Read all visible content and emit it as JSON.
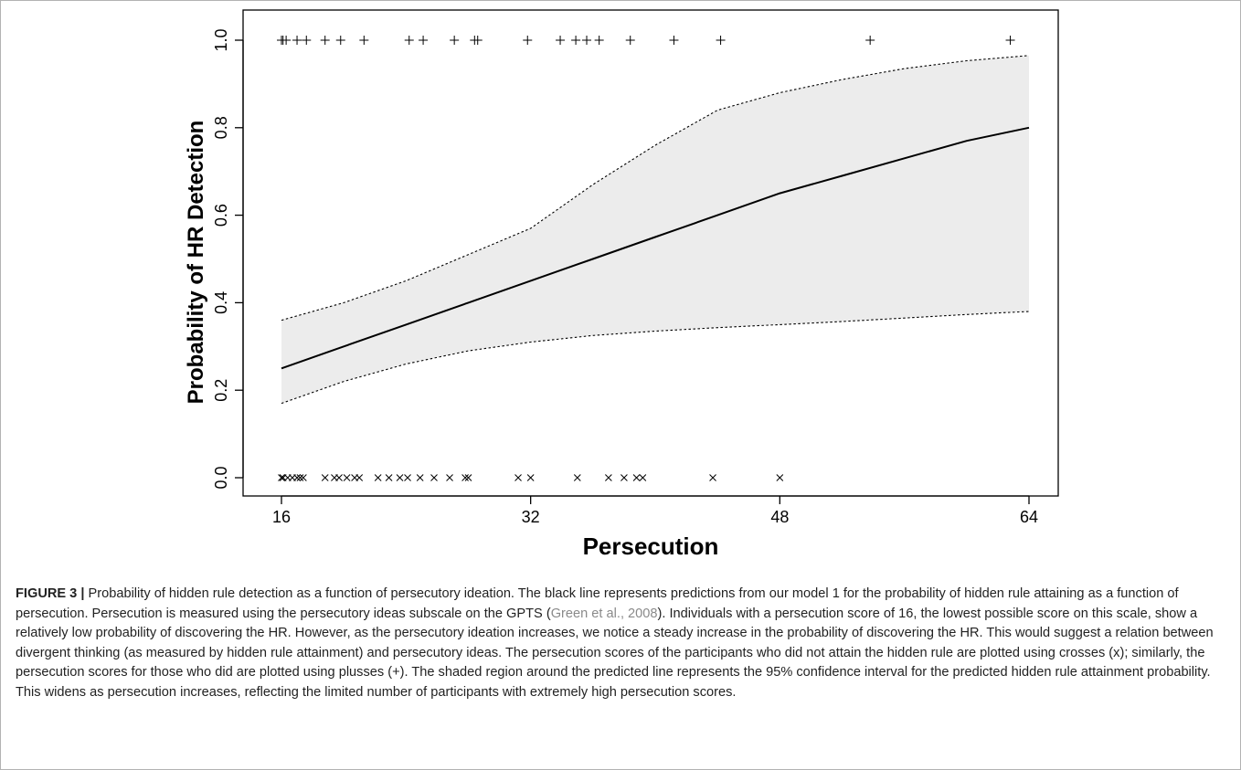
{
  "chart_data": {
    "type": "line",
    "xlabel": "Persecution",
    "ylabel": "Probability of HR Detection",
    "xlim": [
      16,
      64
    ],
    "ylim": [
      0,
      1
    ],
    "x_ticks": [
      16,
      32,
      48,
      64
    ],
    "y_ticks": [
      0.0,
      0.2,
      0.4,
      0.6,
      0.8,
      1.0
    ],
    "y_tick_labels": [
      "0.0",
      "0.2",
      "0.4",
      "0.6",
      "0.8",
      "1.0"
    ],
    "grid": false,
    "legend": "none",
    "prediction": {
      "x": [
        16,
        20,
        24,
        28,
        32,
        36,
        40,
        44,
        48,
        52,
        56,
        60,
        64
      ],
      "y": [
        0.25,
        0.3,
        0.35,
        0.4,
        0.45,
        0.5,
        0.55,
        0.6,
        0.65,
        0.69,
        0.73,
        0.77,
        0.8
      ]
    },
    "confidence_band": {
      "x": [
        16,
        20,
        24,
        28,
        32,
        36,
        40,
        44,
        48,
        52,
        56,
        60,
        64
      ],
      "lower": [
        0.17,
        0.22,
        0.26,
        0.29,
        0.31,
        0.325,
        0.335,
        0.343,
        0.35,
        0.357,
        0.365,
        0.373,
        0.38
      ],
      "upper": [
        0.36,
        0.4,
        0.45,
        0.51,
        0.57,
        0.67,
        0.76,
        0.84,
        0.88,
        0.91,
        0.935,
        0.953,
        0.965
      ]
    },
    "attained_points": {
      "marker": "+",
      "y": 1,
      "x": [
        16,
        16.1,
        16.3,
        17,
        17.6,
        18.8,
        19.8,
        21.3,
        24.2,
        25.1,
        27.1,
        28.4,
        28.6,
        31.8,
        33.9,
        34.9,
        35.6,
        36.4,
        38.4,
        41.2,
        44.2,
        53.8,
        62.8
      ]
    },
    "not_attained_points": {
      "marker": "x",
      "y": 0,
      "x": [
        16,
        16.1,
        16.4,
        16.7,
        17,
        17.2,
        17.4,
        18.8,
        19.4,
        19.7,
        20.2,
        20.7,
        21,
        22.2,
        22.9,
        23.6,
        24.1,
        24.9,
        25.8,
        26.8,
        27.8,
        28,
        31.2,
        32,
        35,
        37,
        38,
        38.8,
        39.2,
        43.7,
        48
      ]
    }
  },
  "caption": {
    "figure_label": "FIGURE 3 |",
    "text_1": " Probability of hidden rule detection as a function of persecutory ideation. The black line represents predictions from our model 1 for the probability of hidden rule attaining as a function of persecution. Persecution is measured using the persecutory ideas subscale on the GPTS (",
    "citation": "Green et al., 2008",
    "text_2": "). Individuals with a persecution score of 16, the lowest possible score on this scale, show a relatively low probability of discovering the HR. However, as the persecutory ideation increases, we notice a steady increase in the probability of discovering the HR. This would suggest a relation between divergent thinking (as measured by hidden rule attainment) and persecutory ideas. The persecution scores of the participants who did not attain the hidden rule are plotted using crosses (x); similarly, the persecution scores for those who did are plotted using plusses (+). The shaded region around the predicted line represents the 95% confidence interval for the predicted hidden rule attainment probability. This widens as persecution increases, reflecting the limited number of participants with extremely high persecution scores."
  }
}
